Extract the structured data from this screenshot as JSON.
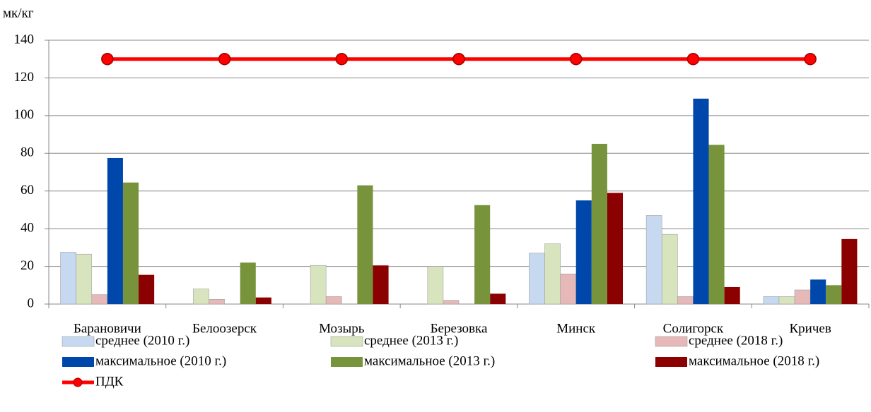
{
  "chart_data": {
    "type": "bar",
    "y_label": "мк/кг",
    "categories": [
      "Барановичи",
      "Белоозерск",
      "Мозырь",
      "Березовка",
      "Минск",
      "Солигорск",
      "Кричев"
    ],
    "series": [
      {
        "name": "среднее (2010 г.)",
        "color": "#c6d9f1",
        "type": "bar",
        "values": [
          27.5,
          null,
          null,
          null,
          27,
          47,
          4
        ]
      },
      {
        "name": "среднее (2013 г.)",
        "color": "#d7e4bd",
        "type": "bar",
        "values": [
          26.5,
          8,
          20.5,
          20,
          32,
          37,
          4
        ]
      },
      {
        "name": "среднее (2018 г.)",
        "color": "#e6b9b8",
        "type": "bar",
        "values": [
          5,
          2.5,
          4,
          2,
          16,
          4,
          7.5
        ]
      },
      {
        "name": "максимальное (2010 г.)",
        "color": "#0047ab",
        "type": "bar",
        "values": [
          77.5,
          null,
          null,
          null,
          55,
          109,
          13
        ]
      },
      {
        "name": "максимальное (2013 г.)",
        "color": "#77933c",
        "type": "bar",
        "values": [
          64.5,
          22,
          63,
          52.5,
          85,
          84.5,
          10
        ]
      },
      {
        "name": "максимальное (2018 г.)",
        "color": "#8b0000",
        "type": "bar",
        "values": [
          15.5,
          3.5,
          20.5,
          5.5,
          59,
          9,
          34.5
        ]
      },
      {
        "name": "ПДК",
        "color": "#ff0000",
        "type": "line",
        "values": [
          130,
          130,
          130,
          130,
          130,
          130,
          130
        ]
      }
    ],
    "ylim": [
      0,
      140
    ],
    "yticks": [
      0,
      20,
      40,
      60,
      80,
      100,
      120,
      140
    ],
    "grid": true,
    "legend": "bottom"
  }
}
